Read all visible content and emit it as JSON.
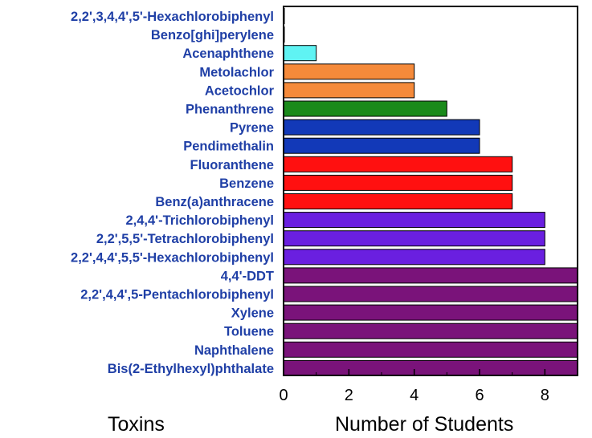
{
  "chart_data": {
    "type": "bar",
    "orientation": "horizontal",
    "title": "",
    "xlabel": "Number of Students",
    "ylabel": "Toxins",
    "xlim": [
      0,
      9
    ],
    "xticks": [
      "0",
      "2",
      "4",
      "6",
      "8"
    ],
    "grid": false,
    "legend": "none",
    "label_color": "#1f3fa6",
    "categories": [
      "2,2',3,4,4',5'-Hexachlorobiphenyl",
      "Benzo[ghi]perylene",
      "Acenaphthene",
      "Metolachlor",
      "Acetochlor",
      "Phenanthrene",
      "Pyrene",
      "Pendimethalin",
      "Fluoranthene",
      "Benzene",
      "Benz(a)anthracene",
      "2,4,4'-Trichlorobiphenyl",
      "2,2',5,5'-Tetrachlorobiphenyl",
      "2,2',4,4',5,5'-Hexachlorobiphenyl",
      "4,4'-DDT",
      "2,2',4,4',5-Pentachlorobiphenyl",
      "Xylene",
      "Toluene",
      "Naphthalene",
      "Bis(2-Ethylhexyl)phthalate"
    ],
    "values": [
      0,
      0,
      1,
      4,
      4,
      5,
      6,
      6,
      7,
      7,
      7,
      8,
      8,
      8,
      9,
      9,
      9,
      9,
      9,
      9
    ],
    "bar_colors": [
      "#000000",
      "#000000",
      "#5ff3f3",
      "#f58a3a",
      "#f58a3a",
      "#1a8a1a",
      "#1239b8",
      "#1239b8",
      "#ff1010",
      "#ff1010",
      "#ff1010",
      "#6a1fe0",
      "#6a1fe0",
      "#6a1fe0",
      "#7a137a",
      "#7a137a",
      "#7a137a",
      "#7a137a",
      "#7a137a",
      "#7a137a"
    ]
  }
}
